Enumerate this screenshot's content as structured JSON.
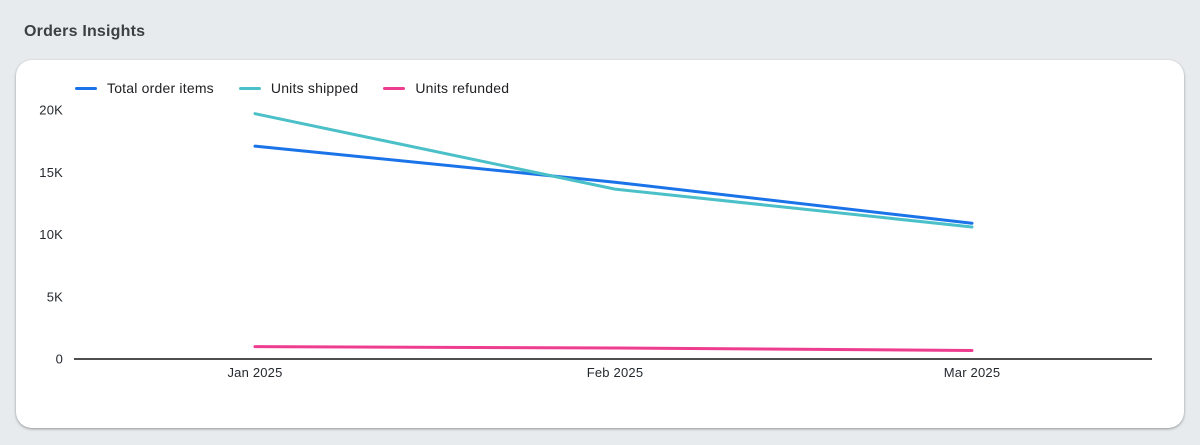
{
  "header": {
    "title": "Orders Insights"
  },
  "chart_data": {
    "type": "line",
    "title": "Orders Insights",
    "categories": [
      "Jan 2025",
      "Feb 2025",
      "Mar 2025"
    ],
    "series": [
      {
        "name": "Total order items",
        "color": "#1a73e8",
        "values": [
          17100,
          14200,
          10900
        ]
      },
      {
        "name": "Units shipped",
        "color": "#4bc0c8",
        "values": [
          19700,
          13650,
          10600
        ]
      },
      {
        "name": "Units refunded",
        "color": "#ee3d8f",
        "values": [
          1000,
          880,
          680
        ]
      }
    ],
    "xlabel": "",
    "ylabel": "",
    "ylim": [
      0,
      20000
    ],
    "yticks": [
      0,
      5000,
      10000,
      15000,
      20000
    ],
    "ytick_labels": [
      "0",
      "5K",
      "10K",
      "15K",
      "20K"
    ],
    "grid": false,
    "legend_position": "top-left"
  }
}
